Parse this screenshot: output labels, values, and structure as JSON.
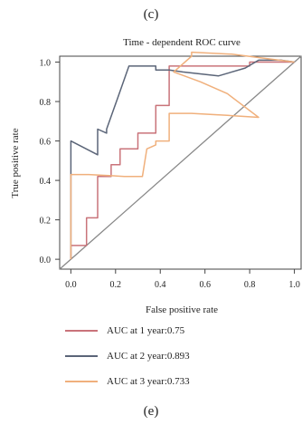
{
  "figure": {
    "panel_label_top": "(c)",
    "panel_label_bottom": "(e)"
  },
  "chart_data": {
    "type": "line",
    "title": "Time - dependent ROC curve",
    "xlabel": "False positive rate",
    "ylabel": "True positive rate",
    "xlim": [
      -0.05,
      1.03
    ],
    "ylim": [
      -0.05,
      1.03
    ],
    "xticks": [
      0.0,
      0.2,
      0.4,
      0.6,
      0.8,
      1.0
    ],
    "xtick_labels": [
      "0.0",
      "0.2",
      "0.4",
      "0.6",
      "0.8",
      "1.0"
    ],
    "yticks": [
      0.0,
      0.2,
      0.4,
      0.6,
      0.8,
      1.0
    ],
    "ytick_labels": [
      "0.0",
      "0.2",
      "0.4",
      "0.6",
      "0.8",
      "1.0"
    ],
    "grid": false,
    "legend_position": "bottom",
    "diagonal": {
      "x": [
        -0.05,
        1.03
      ],
      "y": [
        -0.05,
        1.03
      ],
      "color": "#888888"
    },
    "series": [
      {
        "name": "AUC at 1 year:0.75",
        "color": "#c9737a",
        "x": [
          0.0,
          0.0,
          0.07,
          0.07,
          0.12,
          0.12,
          0.18,
          0.18,
          0.22,
          0.22,
          0.3,
          0.3,
          0.38,
          0.38,
          0.44,
          0.44,
          0.58,
          0.58,
          0.8,
          0.8,
          0.86,
          0.86,
          1.0
        ],
        "y": [
          0.0,
          0.07,
          0.07,
          0.21,
          0.21,
          0.42,
          0.42,
          0.48,
          0.48,
          0.56,
          0.56,
          0.64,
          0.64,
          0.78,
          0.78,
          0.98,
          0.98,
          0.98,
          0.98,
          1.0,
          1.0,
          1.0,
          1.0
        ]
      },
      {
        "name": "AUC at 2 year:0.893",
        "color": "#5b6578",
        "x": [
          0.0,
          0.0,
          0.0,
          0.12,
          0.12,
          0.16,
          0.16,
          0.21,
          0.21,
          0.26,
          0.26,
          0.38,
          0.38,
          0.44,
          0.44,
          0.5,
          0.66,
          0.78,
          0.78,
          0.84,
          0.94,
          1.0
        ],
        "y": [
          0.0,
          0.6,
          0.6,
          0.53,
          0.66,
          0.64,
          0.66,
          0.82,
          0.82,
          0.98,
          0.98,
          0.98,
          0.96,
          0.96,
          0.96,
          0.95,
          0.93,
          0.97,
          0.97,
          1.01,
          1.01,
          1.0
        ]
      },
      {
        "name": "AUC at 3 year:0.733",
        "color": "#f0b07c",
        "x": [
          0.0,
          0.0,
          0.08,
          0.24,
          0.24,
          0.32,
          0.34,
          0.38,
          0.38,
          0.44,
          0.44,
          0.54,
          0.54,
          0.7,
          0.84,
          0.7,
          0.58,
          0.46,
          0.46,
          0.54,
          0.54,
          0.72,
          1.0
        ],
        "y": [
          0.0,
          0.43,
          0.43,
          0.42,
          0.42,
          0.42,
          0.56,
          0.58,
          0.6,
          0.6,
          0.74,
          0.74,
          0.74,
          0.73,
          0.72,
          0.84,
          0.9,
          0.95,
          0.95,
          1.03,
          1.05,
          1.04,
          1.0
        ]
      }
    ]
  }
}
